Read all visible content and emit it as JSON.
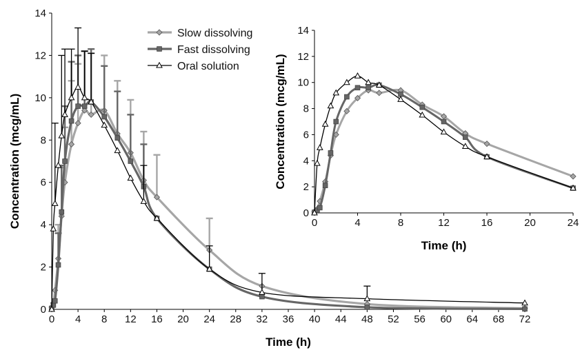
{
  "chart_data": [
    {
      "type": "line",
      "title": "",
      "xlabel": "Time (h)",
      "ylabel": "Concentration (mcg/mL)",
      "xlim": [
        0,
        72
      ],
      "ylim": [
        0,
        14
      ],
      "xticks": [
        0,
        4,
        8,
        12,
        16,
        20,
        24,
        28,
        32,
        36,
        40,
        44,
        48,
        52,
        56,
        60,
        64,
        68,
        72
      ],
      "yticks": [
        0,
        2,
        4,
        6,
        8,
        10,
        12,
        14
      ],
      "grid": false,
      "legend_position": "top-center",
      "series": [
        {
          "name": "Slow dissolving",
          "color": "#a6a6a6",
          "marker": "diamond",
          "x": [
            0,
            0.25,
            0.5,
            1,
            1.5,
            2,
            3,
            4,
            5,
            6,
            8,
            10,
            12,
            14,
            16,
            24,
            32,
            48,
            72
          ],
          "y": [
            0.1,
            0.3,
            0.9,
            2.4,
            4.4,
            6.0,
            7.8,
            8.8,
            9.4,
            9.2,
            9.4,
            8.3,
            7.4,
            6.1,
            5.3,
            2.8,
            1.1,
            0.25,
            0.05
          ],
          "err": [
            null,
            null,
            null,
            1.6,
            2.3,
            2.6,
            3.0,
            2.8,
            2.8,
            2.9,
            2.6,
            2.5,
            2.5,
            2.3,
            2.0,
            1.5,
            null,
            null,
            null
          ]
        },
        {
          "name": "Fast dissolving",
          "color": "#666666",
          "marker": "square",
          "x": [
            0,
            0.25,
            0.5,
            1,
            1.5,
            2,
            3,
            4,
            5,
            6,
            8,
            10,
            12,
            14,
            16,
            24,
            32,
            48,
            72
          ],
          "y": [
            0.05,
            0.2,
            0.4,
            2.1,
            4.6,
            7.0,
            8.9,
            9.6,
            9.6,
            9.8,
            9.1,
            8.1,
            7.0,
            5.8,
            4.3,
            1.9,
            0.6,
            0.1,
            0.02
          ],
          "err": [
            null,
            null,
            null,
            1.5,
            2.2,
            2.6,
            2.8,
            2.4,
            2.6,
            2.5,
            2.4,
            2.2,
            2.2,
            2.0,
            null,
            null,
            null,
            null,
            null
          ]
        },
        {
          "name": "Oral solution",
          "color": "#000000",
          "marker": "triangle",
          "x": [
            0,
            0.25,
            0.5,
            1,
            1.5,
            2,
            3,
            4,
            5,
            6,
            8,
            10,
            12,
            14,
            16,
            24,
            32,
            48,
            72
          ],
          "y": [
            0,
            3.8,
            5.0,
            6.8,
            8.2,
            9.2,
            10.0,
            10.5,
            10.0,
            9.8,
            8.7,
            7.5,
            6.2,
            5.1,
            4.3,
            1.9,
            0.8,
            0.5,
            0.3
          ],
          "err": [
            null,
            null,
            3.8,
            null,
            3.8,
            3.1,
            2.3,
            2.8,
            2.2,
            2.3,
            null,
            null,
            null,
            1.7,
            null,
            1.1,
            0.9,
            0.6,
            null
          ]
        }
      ]
    },
    {
      "type": "line",
      "title": "",
      "xlabel": "Time (h)",
      "ylabel": "Concentration (mcg/mL)",
      "xlim": [
        0,
        24
      ],
      "ylim": [
        0,
        14
      ],
      "xticks": [
        0,
        4,
        8,
        12,
        16,
        20,
        24
      ],
      "yticks": [
        0,
        2,
        4,
        6,
        8,
        10,
        12,
        14
      ],
      "grid": false,
      "series": [
        {
          "name": "Slow dissolving",
          "color": "#a6a6a6",
          "marker": "diamond",
          "x": [
            0,
            0.25,
            0.5,
            1,
            1.5,
            2,
            3,
            4,
            5,
            6,
            8,
            10,
            12,
            14,
            16,
            24
          ],
          "y": [
            0.1,
            0.3,
            0.9,
            2.4,
            4.4,
            6.0,
            7.8,
            8.8,
            9.4,
            9.2,
            9.4,
            8.3,
            7.4,
            6.1,
            5.3,
            2.8
          ]
        },
        {
          "name": "Fast dissolving",
          "color": "#666666",
          "marker": "square",
          "x": [
            0,
            0.25,
            0.5,
            1,
            1.5,
            2,
            3,
            4,
            5,
            6,
            8,
            10,
            12,
            14,
            16,
            24
          ],
          "y": [
            0.05,
            0.2,
            0.4,
            2.1,
            4.6,
            7.0,
            8.9,
            9.6,
            9.6,
            9.8,
            9.1,
            8.1,
            7.0,
            5.8,
            4.3,
            1.9
          ]
        },
        {
          "name": "Oral solution",
          "color": "#000000",
          "marker": "triangle",
          "x": [
            0,
            0.25,
            0.5,
            1,
            1.5,
            2,
            3,
            4,
            5,
            6,
            8,
            10,
            12,
            14,
            16,
            24
          ],
          "y": [
            0,
            3.8,
            5.0,
            6.8,
            8.2,
            9.2,
            10.0,
            10.5,
            10.0,
            9.8,
            8.7,
            7.5,
            6.2,
            5.1,
            4.3,
            1.9
          ]
        }
      ]
    }
  ]
}
